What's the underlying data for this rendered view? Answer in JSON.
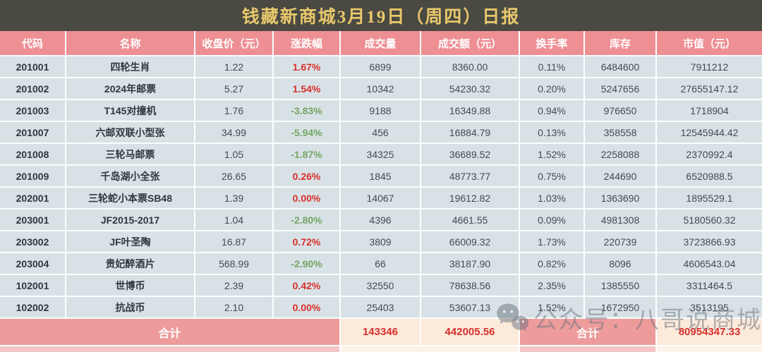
{
  "title": "钱藏新商城3月19日（周四）日报",
  "watermark": {
    "text": "公众号：八哥说商城",
    "icon": "wechat-icon"
  },
  "colors": {
    "titlebar_bg": "#4a4942",
    "title_gold": "#e8c86c",
    "header_pink": "#ee8f94",
    "row_bg": "#d8e2e6",
    "footer_pink": "#ee9b9b",
    "footer_cream": "#fceadb",
    "up_red": "#d7302e",
    "down_green": "#74a465"
  },
  "table": {
    "columns": [
      "代码",
      "名称",
      "收盘价（元）",
      "涨跌幅",
      "成交量",
      "成交额（元）",
      "换手率",
      "库存",
      "市值（元）"
    ],
    "rows": [
      [
        "201001",
        "四轮生肖",
        "1.22",
        "1.67%",
        "6899",
        "8360.00",
        "0.11%",
        "6484600",
        "7911212"
      ],
      [
        "201002",
        "2024年邮票",
        "5.27",
        "1.54%",
        "10342",
        "54230.32",
        "0.20%",
        "5247656",
        "27655147.12"
      ],
      [
        "201003",
        "T145对撞机",
        "1.76",
        "-3.83%",
        "9188",
        "16349.88",
        "0.94%",
        "976650",
        "1718904"
      ],
      [
        "201007",
        "六邮双联小型张",
        "34.99",
        "-5.94%",
        "456",
        "16884.79",
        "0.13%",
        "358558",
        "12545944.42"
      ],
      [
        "201008",
        "三轮马邮票",
        "1.05",
        "-1.87%",
        "34325",
        "36689.52",
        "1.52%",
        "2258088",
        "2370992.4"
      ],
      [
        "201009",
        "千岛湖小全张",
        "26.65",
        "0.26%",
        "1845",
        "48773.77",
        "0.75%",
        "244690",
        "6520988.5"
      ],
      [
        "202001",
        "三轮蛇小本票SB48",
        "1.39",
        "0.00%",
        "14067",
        "19612.82",
        "1.03%",
        "1363690",
        "1895529.1"
      ],
      [
        "203001",
        "JF2015-2017",
        "1.04",
        "-2.80%",
        "4396",
        "4661.55",
        "0.09%",
        "4981308",
        "5180560.32"
      ],
      [
        "203002",
        "JF叶圣陶",
        "16.87",
        "0.72%",
        "3809",
        "66009.32",
        "1.73%",
        "220739",
        "3723866.93"
      ],
      [
        "203004",
        "贵妃醉酒片",
        "568.99",
        "-2.90%",
        "66",
        "38187.90",
        "0.82%",
        "8096",
        "4606543.04"
      ],
      [
        "102001",
        "世博币",
        "2.39",
        "0.42%",
        "32550",
        "78638.56",
        "2.35%",
        "1385550",
        "3311464.5"
      ],
      [
        "102002",
        "抗战币",
        "2.10",
        "0.00%",
        "25403",
        "53607.13",
        "1.52%",
        "1672950",
        "3513195"
      ]
    ],
    "footer": {
      "label_left": "合计",
      "volume_total": "143346",
      "turnover_total": "442005.56",
      "label_right": "合计",
      "market_value_total": "80954347.33"
    }
  }
}
